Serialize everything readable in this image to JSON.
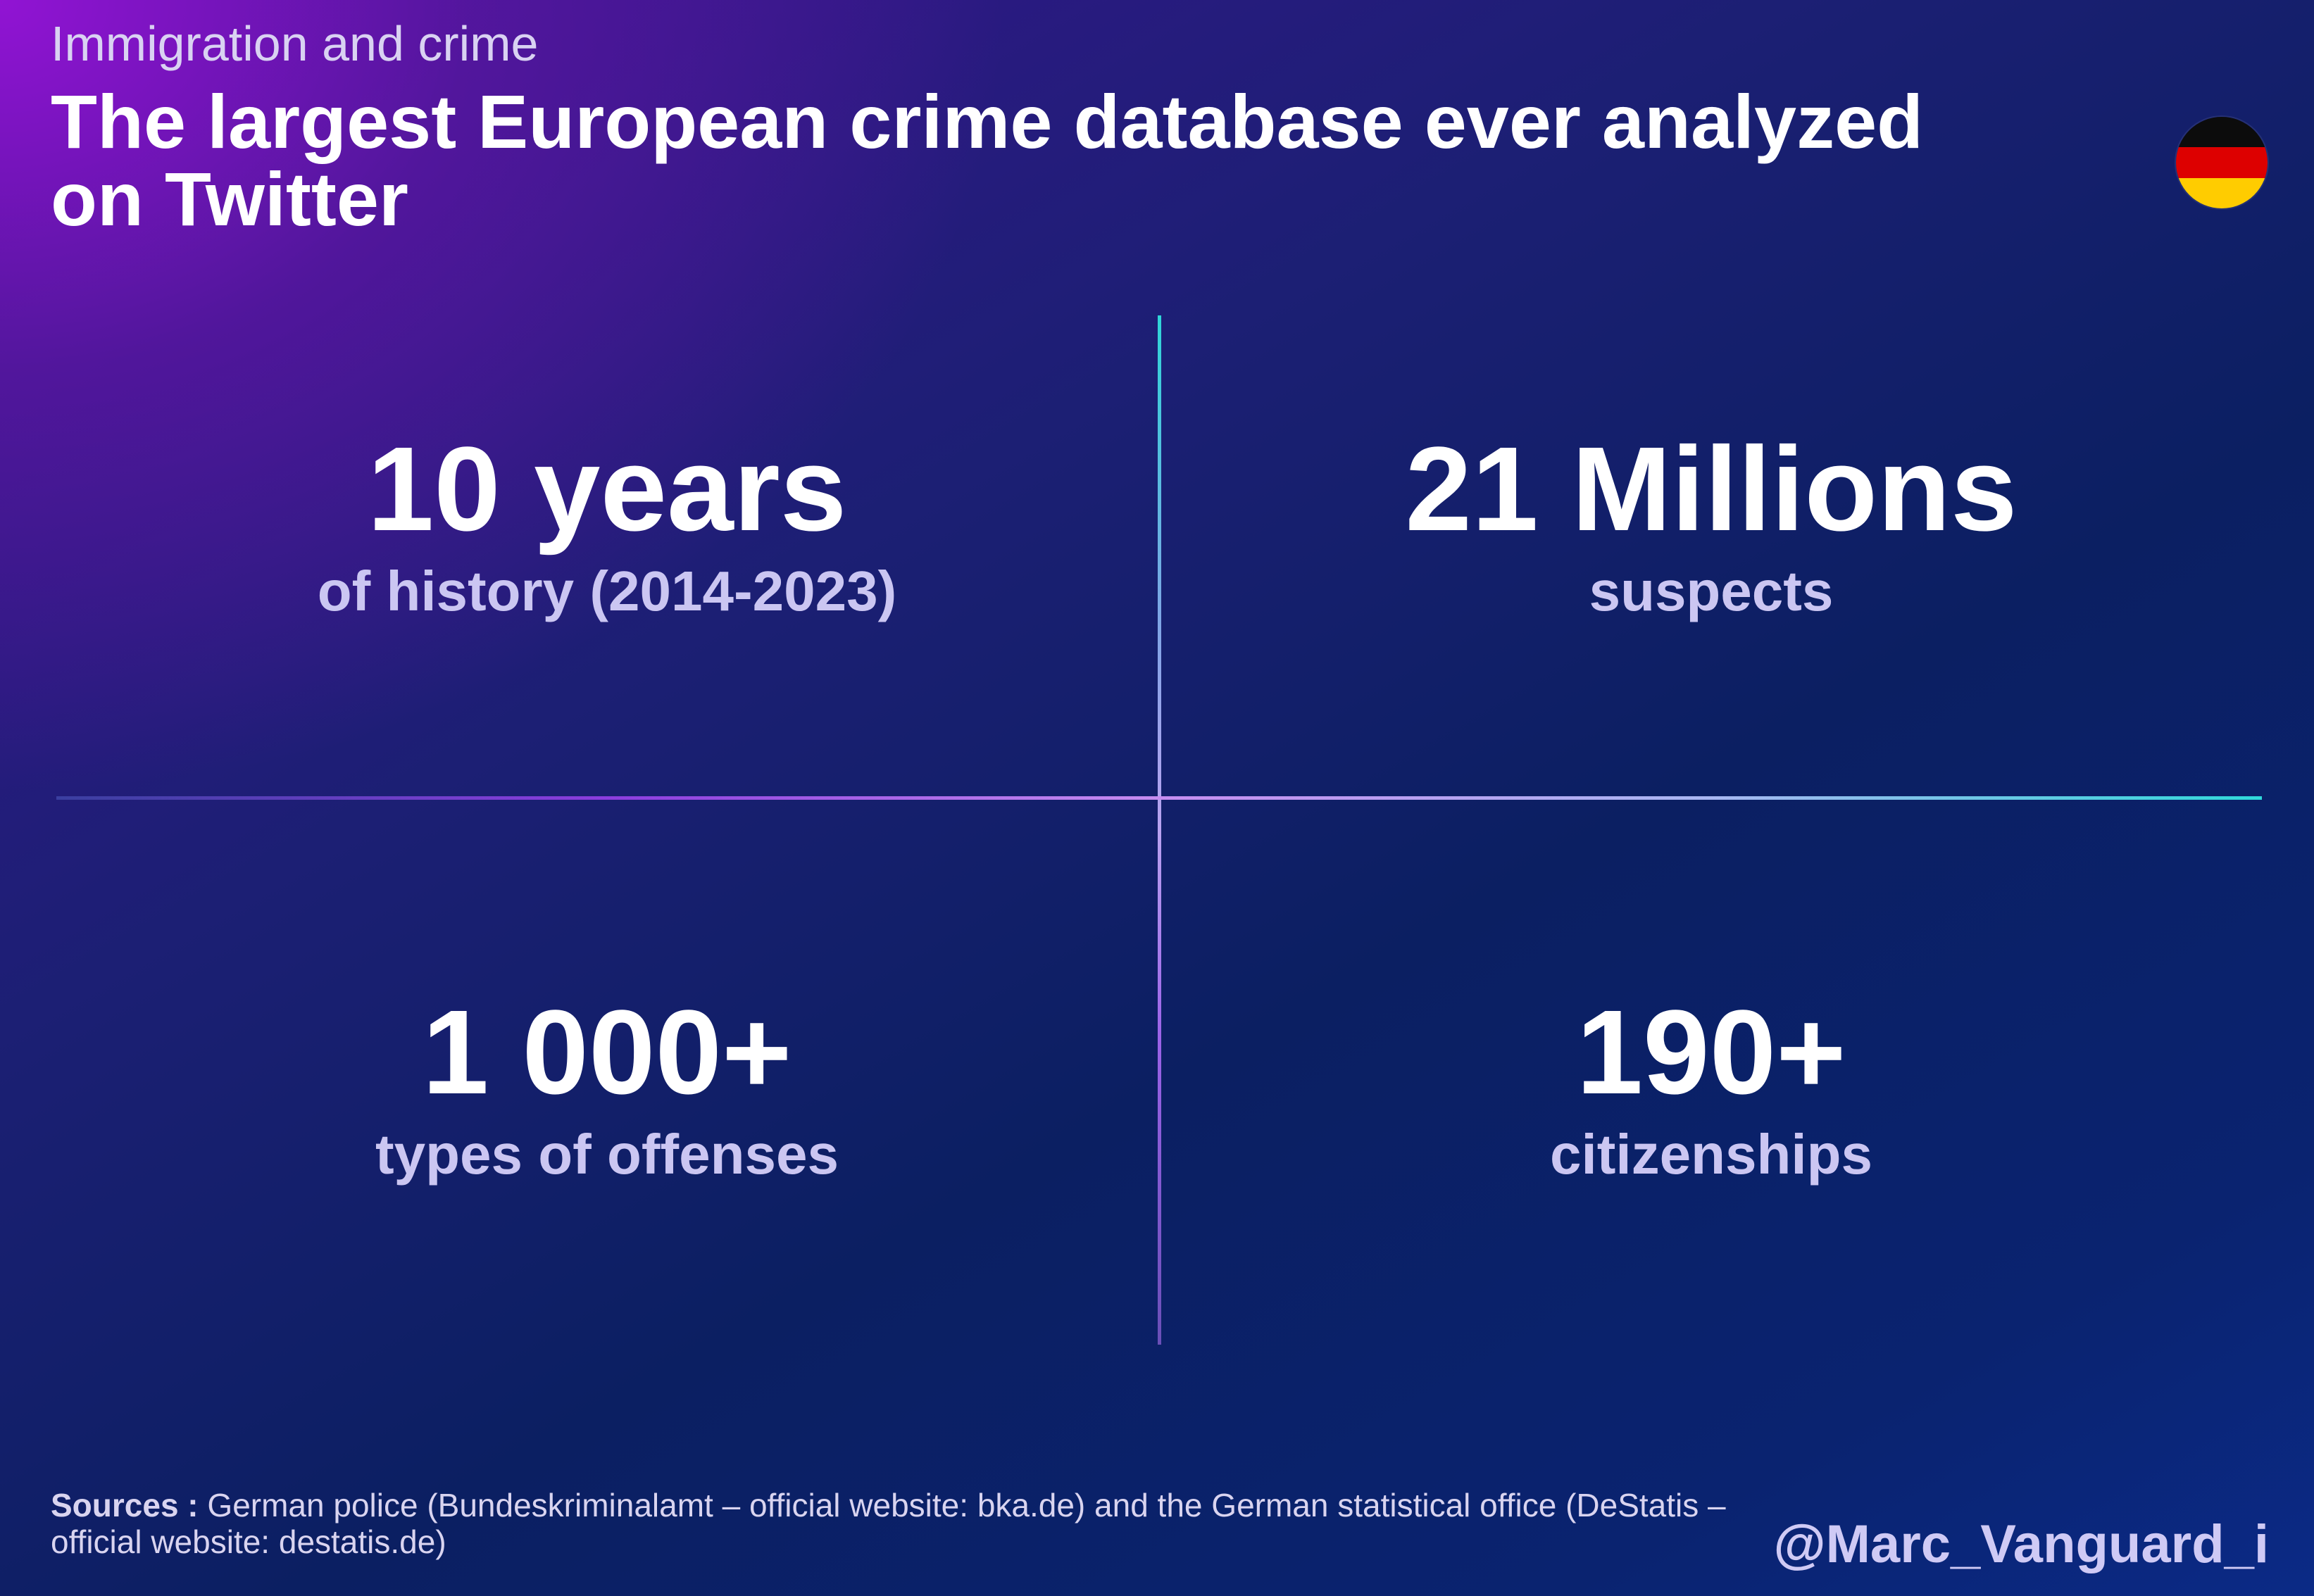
{
  "header": {
    "kicker": "Immigration and crime",
    "title": "The largest European crime database ever analyzed on Twitter",
    "flag_icon": "germany-flag-icon"
  },
  "stats": [
    {
      "value": "10 years",
      "caption": "of history (2014-2023)"
    },
    {
      "value": "21 Millions",
      "caption": "suspects"
    },
    {
      "value": "1 000+",
      "caption": "types of offenses"
    },
    {
      "value": "190+",
      "caption": "citizenships"
    }
  ],
  "footer": {
    "sources_label": "Sources :",
    "sources_text": "German police (Bundeskriminalamt – official website: bka.de) and the German statistical office (DeStatis – official website: destatis.de)",
    "handle": "@Marc_Vanguard_i"
  },
  "colors": {
    "background_purple": "#9614d7",
    "background_navy": "#0b1f62",
    "caption_lavender": "#cbc6f2",
    "divider_cyan": "#2fd6d8",
    "divider_violet": "#8b3dde",
    "flag_black": "#0c0c0c",
    "flag_red": "#dd0000",
    "flag_gold": "#ffcc00"
  }
}
